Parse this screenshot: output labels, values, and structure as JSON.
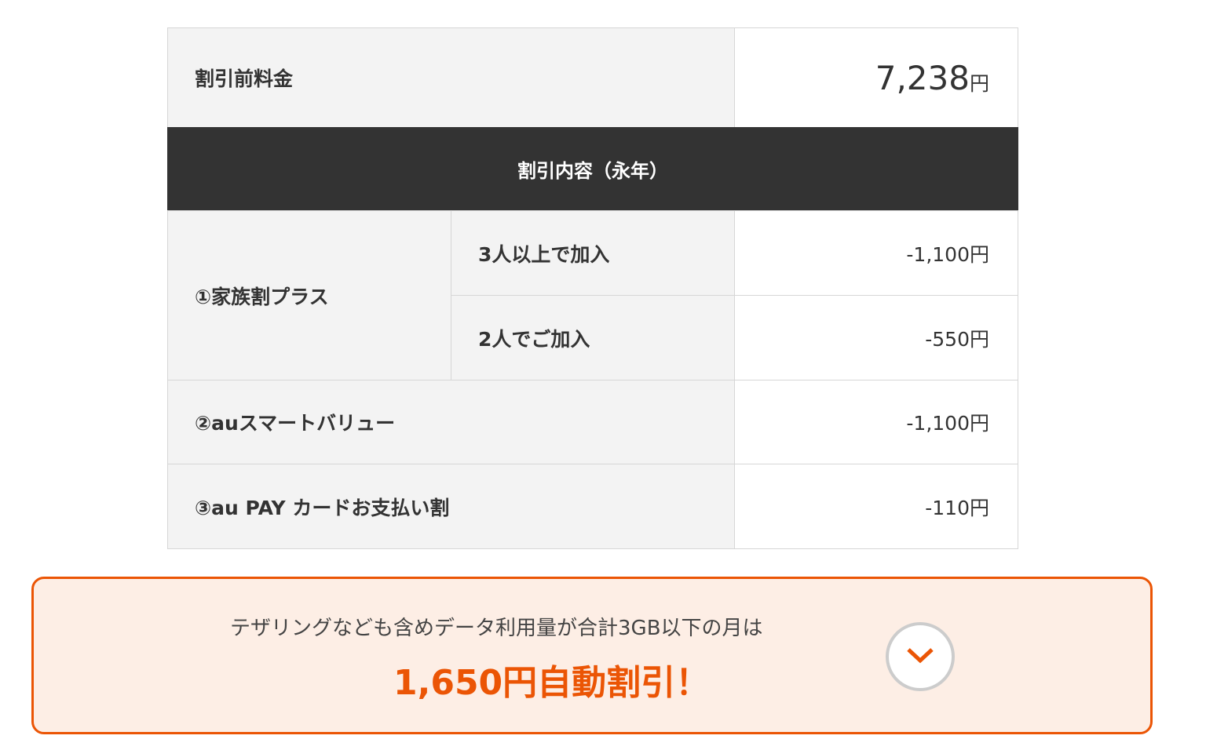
{
  "table": {
    "base_label": "割引前料金",
    "base_price": "7,238",
    "yen": "円",
    "section_header": "割引内容（永年）",
    "rows": [
      {
        "label": "①家族割プラス",
        "sub": [
          {
            "label": "3人以上で加入",
            "value": "-1,100円"
          },
          {
            "label": "2人でご加入",
            "value": "-550円"
          }
        ]
      },
      {
        "label": "②auスマートバリュー",
        "value": "-1,100円"
      },
      {
        "label": "③au PAY カードお支払い割",
        "value": "-110円"
      }
    ]
  },
  "banner": {
    "note": "テザリングなども含めデータ利用量が合計3GB以下の月は",
    "promo": "1,650円自動割引！",
    "toggle_icon": "chevron-down-icon",
    "accent": "#eb5505"
  }
}
